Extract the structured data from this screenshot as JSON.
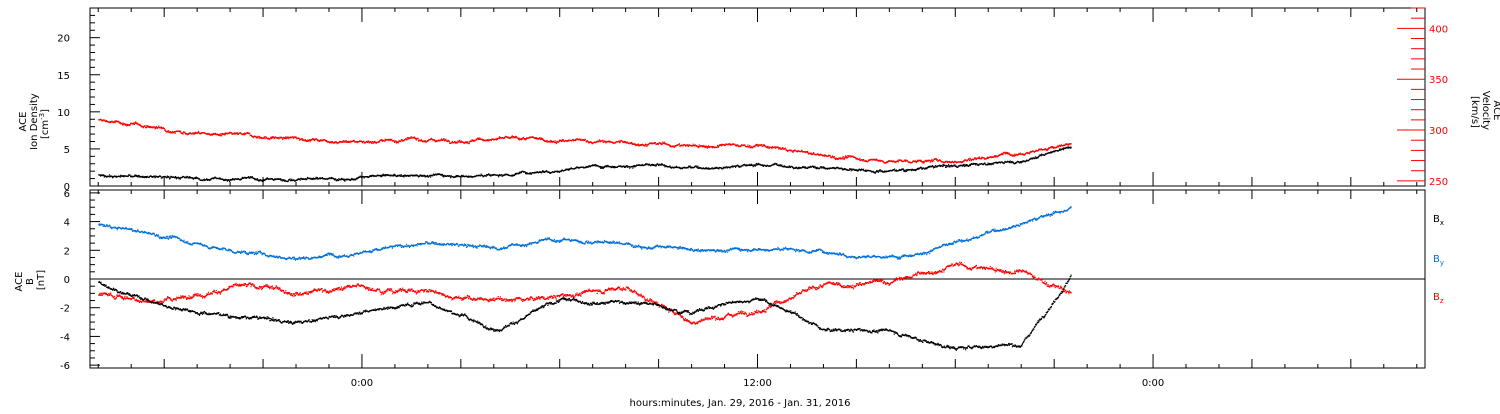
{
  "chart_data": [
    {
      "type": "scatter",
      "title": "",
      "xlabel": "hours:minutes, Jan. 29, 2016 - Jan. 31, 2016",
      "ylabel": "ACE\nIon Density\n[cm^-3]",
      "ylabel_lines": [
        "ACE",
        "Ion Density",
        "[cm",
        "-3",
        "]"
      ],
      "y2label_lines": [
        "ACE",
        "Velocity",
        "[km/s]"
      ],
      "xlim_hours": [
        -8.25,
        32.25
      ],
      "x_tick_labels": [
        {
          "hour": 0,
          "label": "0:00"
        },
        {
          "hour": 12,
          "label": "12:00"
        },
        {
          "hour": 24,
          "label": "0:00"
        }
      ],
      "ylim": [
        0,
        24
      ],
      "y_ticks": [
        0,
        5,
        10,
        15,
        20
      ],
      "y2lim": [
        245,
        420
      ],
      "y2_ticks": [
        250,
        300,
        350,
        400
      ],
      "grid": false,
      "series": [
        {
          "color": "#000000",
          "axis": "left",
          "x": [
            -8.0,
            -6.0,
            -4.0,
            -2.0,
            0.0,
            2.0,
            4.0,
            6.0,
            8.0,
            10.0,
            12.0,
            14.0,
            16.0,
            18.0,
            20.0,
            21.5
          ],
          "y": [
            1.5,
            1.2,
            1.0,
            1.0,
            1.2,
            1.6,
            1.5,
            2.4,
            3.0,
            2.5,
            3.0,
            2.6,
            2.2,
            2.8,
            3.5,
            5.5
          ]
        },
        {
          "color": "#ff0000",
          "axis": "right",
          "x": [
            -8.0,
            -6.0,
            -4.0,
            -2.0,
            0.0,
            2.0,
            4.0,
            6.0,
            8.0,
            10.0,
            12.0,
            14.0,
            16.0,
            18.0,
            20.0,
            21.5
          ],
          "y": [
            310,
            302,
            295,
            292,
            290,
            291,
            292,
            290,
            288,
            285,
            285,
            275,
            270,
            270,
            280,
            286
          ]
        }
      ]
    },
    {
      "type": "scatter",
      "title": "",
      "xlabel": "hours:minutes, Jan. 29, 2016 - Jan. 31, 2016",
      "ylabel": "ACE\nB\n[nT]",
      "ylabel_lines": [
        "ACE",
        "B",
        "[nT]"
      ],
      "xlim_hours": [
        -8.25,
        32.25
      ],
      "ylim": [
        -6.2,
        6.2
      ],
      "y_ticks": [
        -6,
        -4,
        -2,
        0,
        2,
        4,
        6
      ],
      "zero_line": true,
      "grid": false,
      "legend_placement": "right",
      "series": [
        {
          "name": "B_x",
          "base": "B",
          "sub": "x",
          "color": "#000000",
          "x": [
            -8.0,
            -6.0,
            -4.0,
            -2.0,
            0.0,
            2.0,
            4.0,
            6.0,
            8.0,
            10.0,
            12.0,
            14.0,
            16.0,
            18.0,
            20.0,
            21.5
          ],
          "y": [
            -0.2,
            -1.8,
            -2.5,
            -3.0,
            -2.2,
            -1.5,
            -3.5,
            -1.5,
            -1.5,
            -2.2,
            -1.2,
            -3.5,
            -3.6,
            -4.8,
            -4.5,
            0.3
          ]
        },
        {
          "name": "B_y",
          "base": "B",
          "sub": "y",
          "color": "#0070d8",
          "x": [
            -8.0,
            -6.0,
            -4.0,
            -2.0,
            0.0,
            2.0,
            4.0,
            6.0,
            8.0,
            10.0,
            12.0,
            14.0,
            16.0,
            18.0,
            20.0,
            21.5
          ],
          "y": [
            3.8,
            3.0,
            2.0,
            1.5,
            2.0,
            2.5,
            2.2,
            2.8,
            2.5,
            2.0,
            2.2,
            2.0,
            1.5,
            2.5,
            4.0,
            5.0
          ]
        },
        {
          "name": "B_z",
          "base": "B",
          "sub": "z",
          "color": "#ff0000",
          "x": [
            -8.0,
            -6.0,
            -4.0,
            -2.0,
            0.0,
            2.0,
            4.0,
            6.0,
            8.0,
            10.0,
            12.0,
            14.0,
            16.0,
            18.0,
            20.0,
            21.5
          ],
          "y": [
            -1.0,
            -1.5,
            -0.5,
            -0.8,
            -0.5,
            -0.8,
            -1.5,
            -1.2,
            -0.5,
            -3.0,
            -2.0,
            -0.5,
            -0.2,
            1.0,
            0.5,
            -1.0
          ]
        }
      ]
    }
  ]
}
